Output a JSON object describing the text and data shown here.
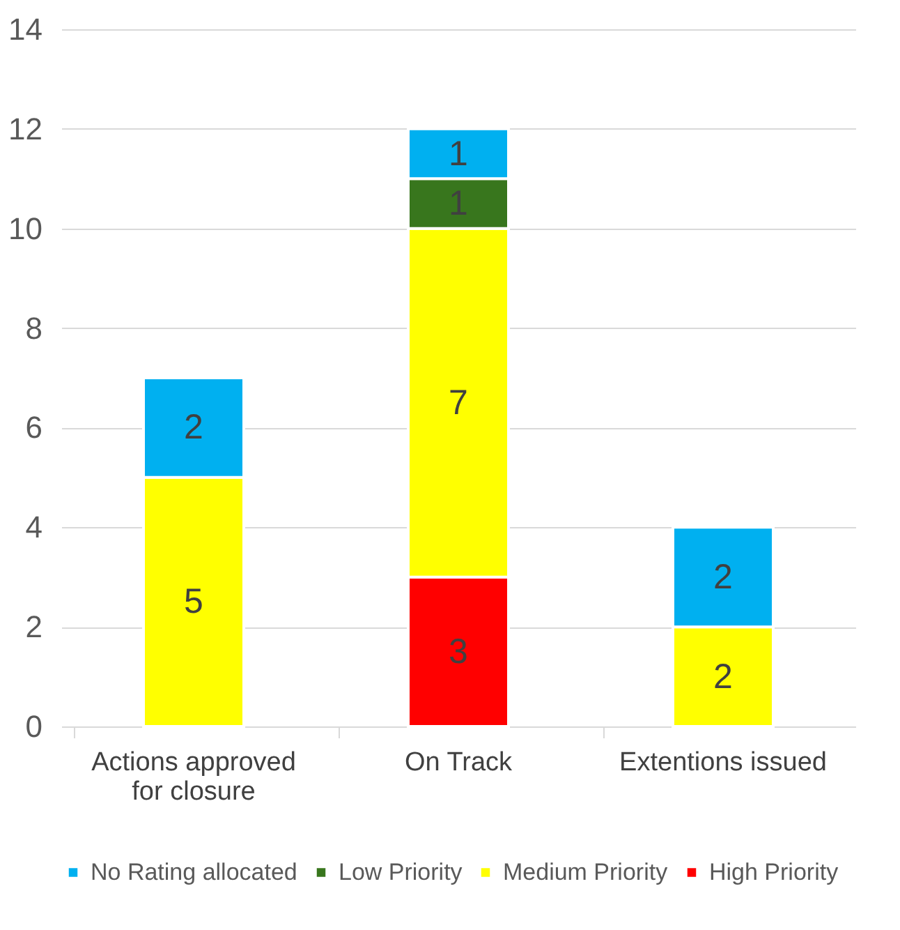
{
  "chart_data": {
    "type": "bar",
    "stacked": true,
    "categories": [
      "Actions approved for closure",
      "On Track",
      "Extentions issued"
    ],
    "series": [
      {
        "name": "High Priority",
        "color": "#ff0000",
        "values": [
          null,
          3,
          null
        ]
      },
      {
        "name": "Medium Priority",
        "color": "#ffff00",
        "values": [
          5,
          7,
          2
        ]
      },
      {
        "name": "Low Priority",
        "color": "#38761d",
        "values": [
          null,
          1,
          null
        ]
      },
      {
        "name": "No Rating allocated",
        "color": "#00b0f0",
        "values": [
          2,
          1,
          2
        ]
      }
    ],
    "ylim": [
      0,
      14
    ],
    "yticks": [
      0,
      2,
      4,
      6,
      8,
      10,
      12,
      14
    ],
    "grid": "y",
    "legend": "bottom",
    "data_labels": true
  }
}
